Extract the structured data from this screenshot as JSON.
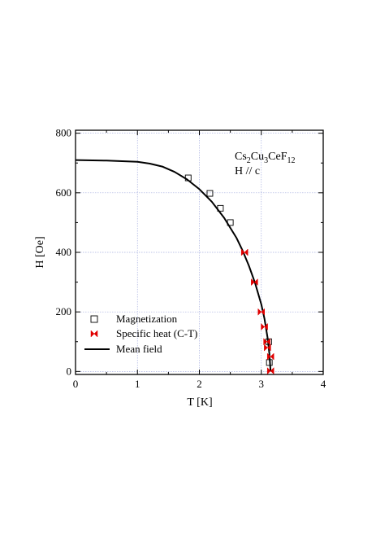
{
  "chart_data": {
    "type": "scatter",
    "xlabel": "T [K]",
    "ylabel": "H [Oe]",
    "xlim": [
      0,
      4
    ],
    "ylim": [
      -10,
      810
    ],
    "x_ticks": [
      0,
      1,
      2,
      3,
      4
    ],
    "y_ticks": [
      0,
      200,
      400,
      600,
      800
    ],
    "grid": true,
    "annotation": {
      "compound_parts": [
        "Cs",
        "2",
        "Cu",
        "3",
        "CeF",
        "12"
      ],
      "field_direction": "H // c"
    },
    "legend": {
      "placement": "lower-left",
      "entries": [
        "Magnetization",
        "Specific heat (C-T)",
        "Mean field"
      ]
    },
    "series": [
      {
        "name": "Magnetization",
        "marker": "open-square",
        "color": "#000000",
        "points": [
          [
            1.82,
            650
          ],
          [
            2.17,
            598
          ],
          [
            2.34,
            548
          ],
          [
            2.5,
            500
          ],
          [
            3.12,
            100
          ],
          [
            3.13,
            30
          ]
        ]
      },
      {
        "name": "Specific heat (C-T)",
        "marker": "bowtie",
        "color": "#e00000",
        "points": [
          [
            2.73,
            400
          ],
          [
            2.89,
            300
          ],
          [
            3.0,
            200
          ],
          [
            3.05,
            150
          ],
          [
            3.09,
            100
          ],
          [
            3.1,
            80
          ],
          [
            3.15,
            50
          ],
          [
            3.15,
            2
          ]
        ]
      },
      {
        "name": "Mean field",
        "line": "solid",
        "color": "#000000",
        "points": [
          [
            0,
            710
          ],
          [
            0.5,
            708
          ],
          [
            1.0,
            704
          ],
          [
            1.2,
            698
          ],
          [
            1.4,
            688
          ],
          [
            1.6,
            670
          ],
          [
            1.8,
            645
          ],
          [
            2.0,
            612
          ],
          [
            2.2,
            570
          ],
          [
            2.4,
            516
          ],
          [
            2.6,
            448
          ],
          [
            2.7,
            405
          ],
          [
            2.8,
            355
          ],
          [
            2.9,
            297
          ],
          [
            3.0,
            225
          ],
          [
            3.05,
            178
          ],
          [
            3.1,
            115
          ],
          [
            3.13,
            60
          ],
          [
            3.15,
            0
          ]
        ]
      }
    ]
  }
}
